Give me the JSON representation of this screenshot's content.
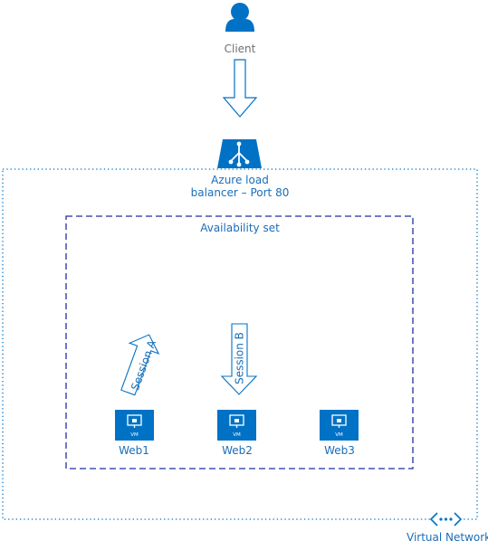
{
  "diagram": {
    "client": {
      "label": "Client",
      "icon": "user-icon"
    },
    "load_balancer": {
      "line1": "Azure load",
      "line2": "balancer – Port 80",
      "icon": "load-balancer-icon"
    },
    "availability_set": {
      "label": "Availability set"
    },
    "virtual_network": {
      "label": "Virtual Network",
      "icon": "virtual-network-icon"
    },
    "sessions": [
      {
        "label": "Session A"
      },
      {
        "label": "Session B"
      }
    ],
    "vms": [
      {
        "label": "Web1",
        "badge": "VM",
        "icon": "vm-icon"
      },
      {
        "label": "Web2",
        "badge": "VM",
        "icon": "vm-icon"
      },
      {
        "label": "Web3",
        "badge": "VM",
        "icon": "vm-icon"
      }
    ]
  },
  "colors": {
    "azure_blue": "#0072c6",
    "text_gray": "#707070",
    "label_blue": "#1a6db8",
    "dashed_navy": "#1f2fa3"
  }
}
